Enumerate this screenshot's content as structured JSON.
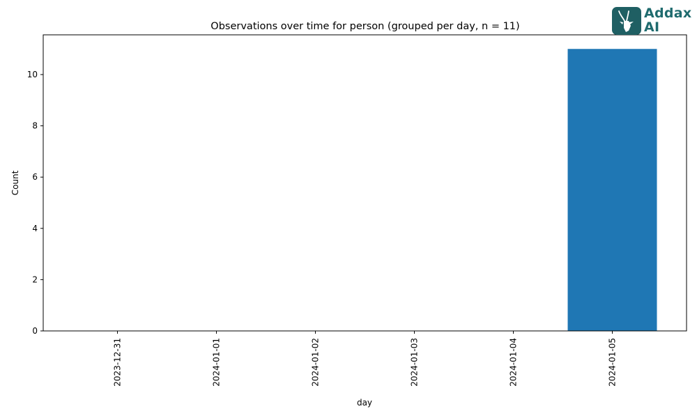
{
  "chart_data": {
    "type": "bar",
    "title": "Observations over time for person (grouped per day, n = 11)",
    "xlabel": "day",
    "ylabel": "Count",
    "categories": [
      "2023-12-31",
      "2024-01-01",
      "2024-01-02",
      "2024-01-03",
      "2024-01-04",
      "2024-01-05"
    ],
    "values": [
      0,
      0,
      0,
      0,
      0,
      11
    ],
    "yticks": [
      0,
      2,
      4,
      6,
      8,
      10
    ],
    "ylim": [
      0,
      11.55
    ],
    "grid": false,
    "bar_color": "#1f77b4"
  },
  "logo": {
    "line1": "Addax",
    "line2": "AI",
    "color": "#1f5f63"
  }
}
